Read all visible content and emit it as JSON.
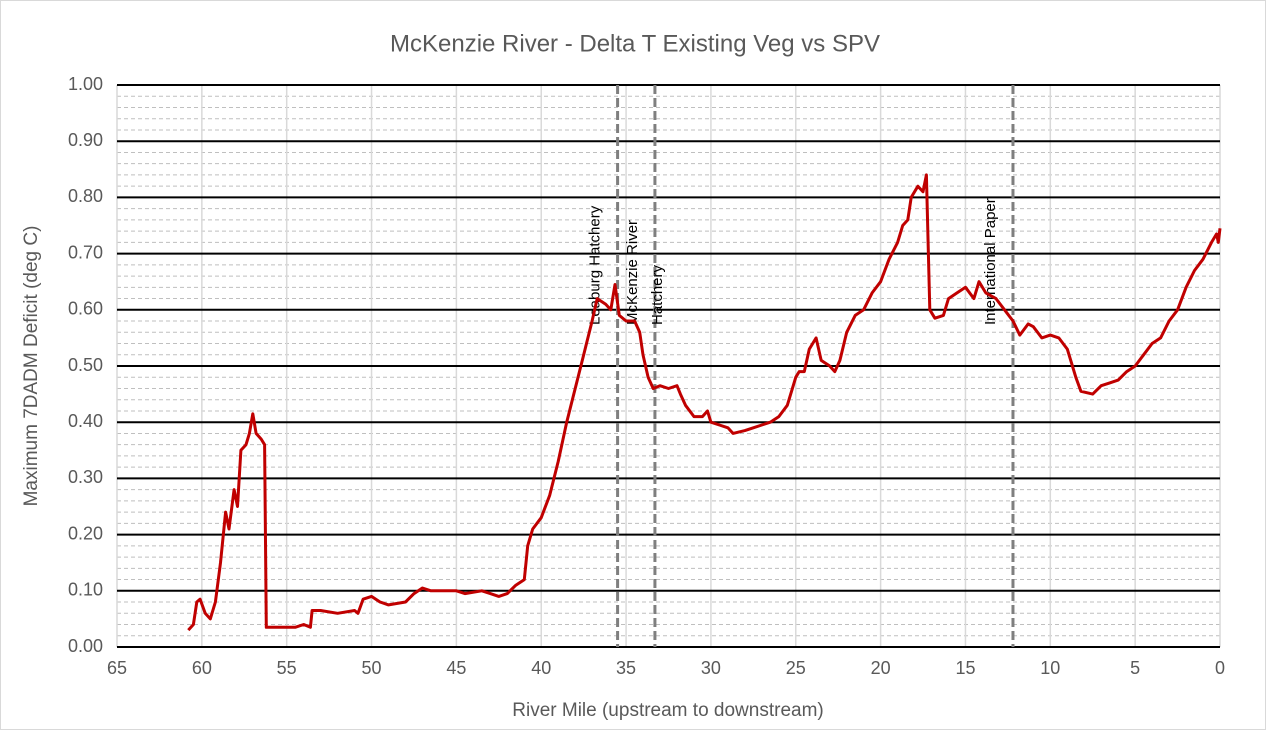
{
  "chart_data": {
    "type": "line",
    "title": "McKenzie River - Delta T Existing Veg vs SPV",
    "x_label": "River Mile (upstream to downstream)",
    "y_label": "Maximum 7DADM Deficit (deg C)",
    "color": "#c00000",
    "xlim": [
      65,
      0
    ],
    "xticks": [
      65,
      60,
      55,
      50,
      45,
      40,
      35,
      30,
      25,
      20,
      15,
      10,
      5,
      0
    ],
    "ylim": [
      0,
      1
    ],
    "yticks": [
      {
        "value": 0,
        "label": "0.00"
      },
      {
        "value": 0.1,
        "label": "0.10"
      },
      {
        "value": 0.2,
        "label": "0.20"
      },
      {
        "value": 0.3,
        "label": "0.30"
      },
      {
        "value": 0.4,
        "label": "0.40"
      },
      {
        "value": 0.5,
        "label": "0.50"
      },
      {
        "value": 0.6,
        "label": "0.60"
      },
      {
        "value": 0.7,
        "label": "0.70"
      },
      {
        "value": 0.8,
        "label": "0.80"
      },
      {
        "value": 0.9,
        "label": "0.90"
      },
      {
        "value": 1,
        "label": "1.00"
      }
    ],
    "grid": true,
    "minor_grid": true,
    "annotations": [
      {
        "x": 35.5,
        "lines": [
          "Leaburg Hatchery"
        ]
      },
      {
        "x": 33.3,
        "lines": [
          "McKenzie River",
          "Hatchery"
        ]
      },
      {
        "x": 12.2,
        "lines": [
          "International Paper"
        ]
      }
    ],
    "x": [
      60.8,
      60.5,
      60.3,
      60.1,
      59.8,
      59.5,
      59.2,
      58.9,
      58.6,
      58.4,
      58.1,
      57.9,
      57.7,
      57.4,
      57.2,
      57.0,
      56.8,
      56.5,
      56.3,
      56.2,
      55,
      54.5,
      54,
      53.6,
      53.5,
      53,
      52,
      51,
      50.8,
      50.5,
      50,
      49.5,
      49,
      48,
      47.5,
      47,
      46.5,
      46,
      45,
      44.5,
      43.5,
      43,
      42.5,
      42,
      41.5,
      41,
      40.8,
      40.5,
      40,
      39.5,
      39,
      38.5,
      38,
      37.5,
      37,
      36.7,
      36.2,
      35.9,
      35.65,
      35.4,
      35,
      34.5,
      34.2,
      34,
      33.7,
      33.4,
      33,
      32.5,
      32,
      31.8,
      31.5,
      31,
      30.5,
      30.2,
      30,
      29.5,
      29,
      28.7,
      28,
      27.5,
      27,
      26.5,
      26,
      25.5,
      25,
      24.8,
      24.5,
      24.2,
      23.8,
      23.5,
      23,
      22.7,
      22.4,
      22,
      21.5,
      21,
      20.5,
      20,
      19.5,
      19,
      18.7,
      18.4,
      18.2,
      17.8,
      17.5,
      17.3,
      17.1,
      16.8,
      16.3,
      16,
      15.5,
      15,
      14.5,
      14.2,
      13.8,
      13.2,
      12.7,
      12.2,
      11.8,
      11.3,
      11,
      10.5,
      10,
      9.5,
      9,
      8.5,
      8.2,
      7.5,
      7,
      6.5,
      6,
      5.5,
      5,
      4.5,
      4,
      3.5,
      3,
      2.5,
      2,
      1.5,
      1,
      0.5,
      0.2,
      0.1,
      0
    ],
    "values": [
      0.03,
      0.04,
      0.08,
      0.085,
      0.06,
      0.05,
      0.08,
      0.15,
      0.24,
      0.21,
      0.28,
      0.25,
      0.35,
      0.36,
      0.38,
      0.415,
      0.38,
      0.37,
      0.36,
      0.035,
      0.035,
      0.035,
      0.04,
      0.035,
      0.065,
      0.065,
      0.06,
      0.065,
      0.06,
      0.085,
      0.09,
      0.08,
      0.075,
      0.08,
      0.095,
      0.105,
      0.1,
      0.1,
      0.1,
      0.095,
      0.1,
      0.095,
      0.09,
      0.095,
      0.11,
      0.12,
      0.18,
      0.21,
      0.23,
      0.27,
      0.33,
      0.4,
      0.46,
      0.52,
      0.58,
      0.62,
      0.61,
      0.6,
      0.645,
      0.59,
      0.58,
      0.58,
      0.56,
      0.52,
      0.48,
      0.46,
      0.465,
      0.46,
      0.465,
      0.45,
      0.43,
      0.41,
      0.41,
      0.42,
      0.4,
      0.395,
      0.39,
      0.38,
      0.385,
      0.39,
      0.395,
      0.4,
      0.41,
      0.43,
      0.48,
      0.49,
      0.49,
      0.53,
      0.55,
      0.51,
      0.5,
      0.49,
      0.51,
      0.56,
      0.59,
      0.6,
      0.63,
      0.65,
      0.69,
      0.72,
      0.75,
      0.76,
      0.8,
      0.82,
      0.81,
      0.84,
      0.6,
      0.585,
      0.59,
      0.62,
      0.63,
      0.64,
      0.62,
      0.65,
      0.63,
      0.62,
      0.6,
      0.58,
      0.555,
      0.575,
      0.57,
      0.55,
      0.555,
      0.55,
      0.53,
      0.48,
      0.455,
      0.45,
      0.465,
      0.47,
      0.475,
      0.49,
      0.5,
      0.52,
      0.54,
      0.55,
      0.58,
      0.6,
      0.64,
      0.67,
      0.69,
      0.72,
      0.735,
      0.72,
      0.745
    ]
  }
}
